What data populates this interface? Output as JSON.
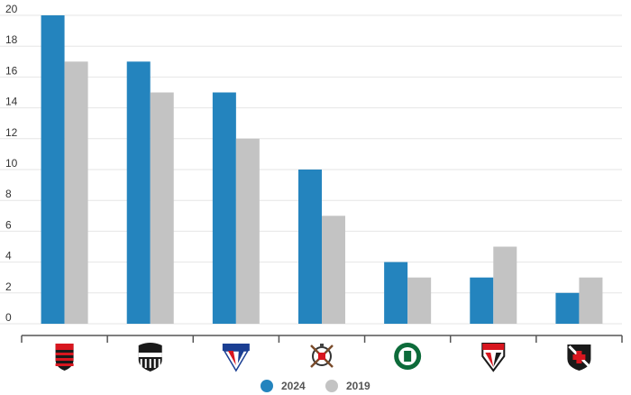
{
  "chart_data": {
    "type": "bar",
    "title": "",
    "xlabel": "",
    "ylabel": "",
    "ylim": [
      0,
      20
    ],
    "yticks": [
      0,
      2,
      4,
      6,
      8,
      10,
      12,
      14,
      16,
      18,
      20
    ],
    "grid": true,
    "legend_position": "bottom-center",
    "categories": [
      "Flamengo",
      "Ceará",
      "Fortaleza",
      "Corinthians",
      "Palmeiras",
      "São Paulo",
      "Vasco"
    ],
    "category_icons": [
      "flamengo-crest-icon",
      "ceara-crest-icon",
      "fortaleza-crest-icon",
      "corinthians-crest-icon",
      "palmeiras-crest-icon",
      "sao-paulo-crest-icon",
      "vasco-crest-icon"
    ],
    "series": [
      {
        "name": "2024",
        "color": "#2484be",
        "values": [
          20,
          17,
          15,
          10,
          4,
          3,
          2
        ]
      },
      {
        "name": "2019",
        "color": "#c3c3c3",
        "values": [
          17,
          15,
          12,
          7,
          3,
          5,
          3
        ]
      }
    ]
  },
  "colors": {
    "grid": "#e6e6e6",
    "axis": "#555555"
  }
}
